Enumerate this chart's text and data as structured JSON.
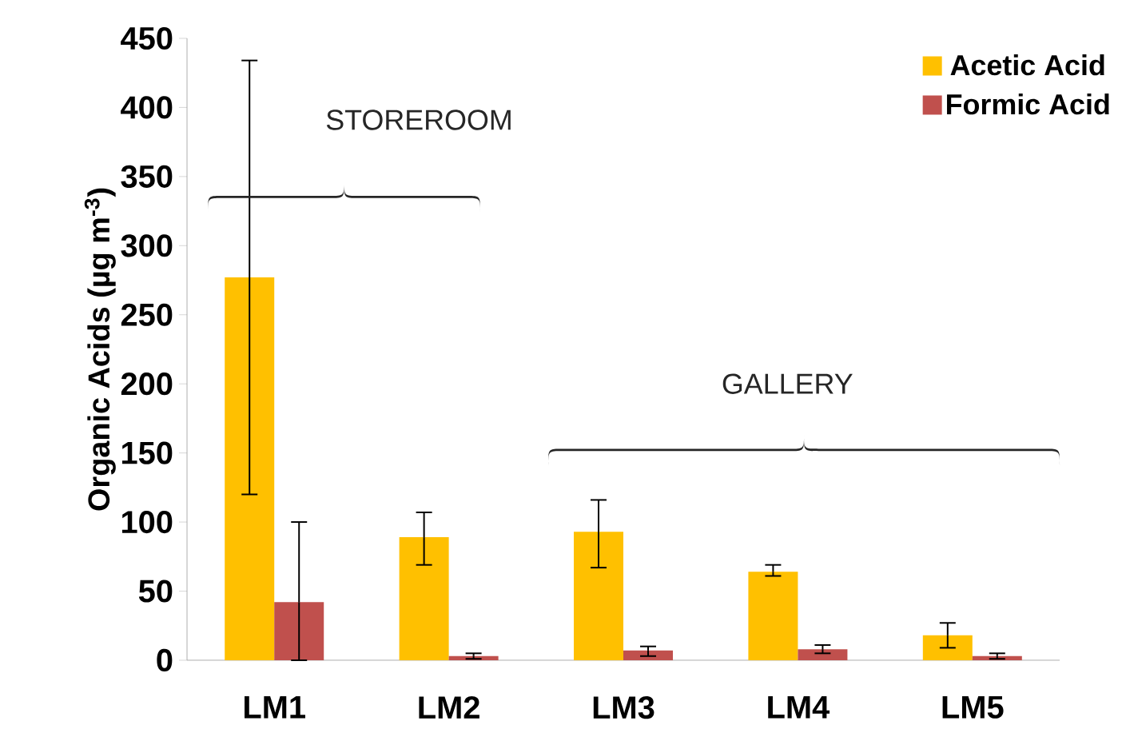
{
  "chart_data": {
    "type": "bar",
    "ylabel": "Organic Acids (µg m$^{-3}$)",
    "categories": [
      "LM1",
      "LM2",
      "LM3",
      "LM4",
      "LM5"
    ],
    "series": [
      {
        "name": "Acetic Acid",
        "color": "#ffc000",
        "values": [
          277,
          89,
          93,
          64,
          18
        ],
        "errors": [
          [
            120,
            434
          ],
          [
            69,
            107
          ],
          [
            67,
            116
          ],
          [
            61,
            69
          ],
          [
            9,
            27
          ]
        ]
      },
      {
        "name": "Formic Acid",
        "color": "#c0504d",
        "values": [
          42,
          3,
          7,
          8,
          3
        ],
        "errors": [
          [
            0,
            100
          ],
          2,
          [
            3,
            10
          ],
          [
            5,
            11
          ],
          2
        ]
      }
    ],
    "ylim": [
      0,
      450
    ],
    "yticks": [
      0,
      50,
      100,
      150,
      200,
      250,
      300,
      350,
      400,
      450
    ],
    "annotations": [
      "STOREROOM",
      "GALLERY"
    ],
    "legend": "top right",
    "grid": false
  }
}
